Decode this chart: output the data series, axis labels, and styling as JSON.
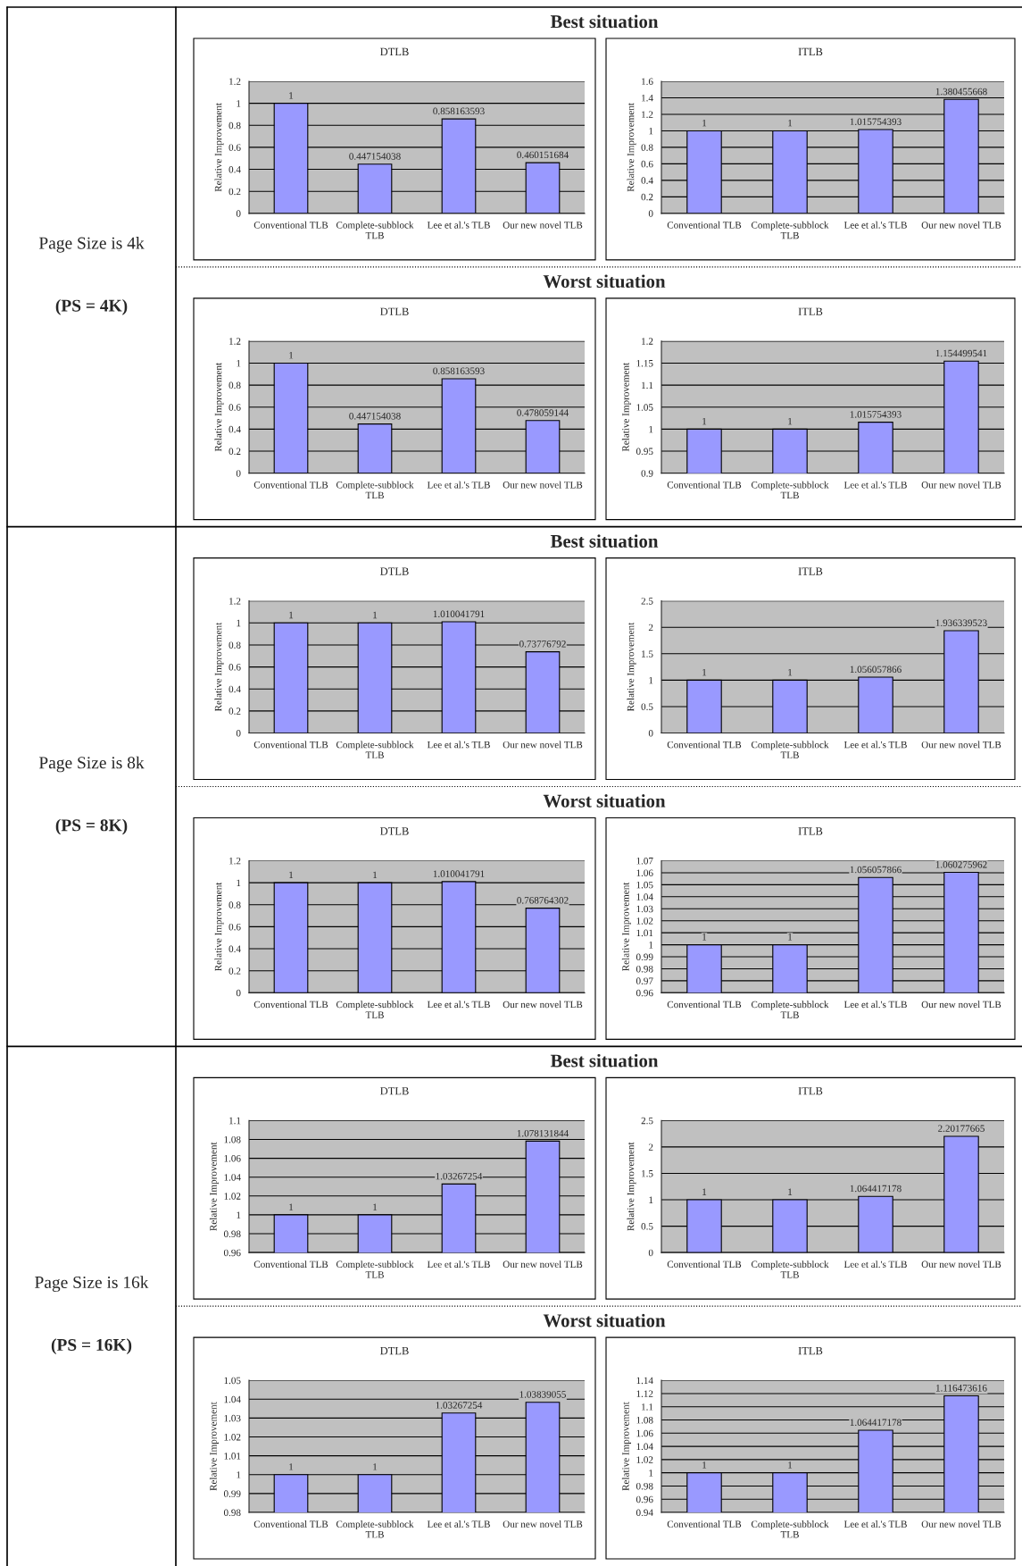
{
  "chart_data": [
    {
      "type": "bar",
      "title": "DTLB",
      "ylabel": "Relative Improvement",
      "categories": [
        "Conventional TLB",
        "Complete-subblock TLB",
        "Lee et al.'s TLB",
        "Our new novel TLB"
      ],
      "values": [
        1,
        0.447154038,
        0.858163593,
        0.460151684
      ],
      "color": "#9999ff",
      "ylim": [
        0,
        1.2
      ],
      "yticks": [
        0,
        0.2,
        0.4,
        0.6,
        0.8,
        1,
        1.2
      ],
      "grid": "y",
      "data_labels": true,
      "annotations": [
        "Best situation",
        "Page Size is 4k",
        "(PS = 4K)"
      ]
    },
    {
      "type": "bar",
      "title": "ITLB",
      "ylabel": "Relative Improvement",
      "categories": [
        "Conventional TLB",
        "Complete-subblock TLB",
        "Lee et al.'s TLB",
        "Our new novel TLB"
      ],
      "values": [
        1,
        1,
        1.015754393,
        1.380455668
      ],
      "color": "#9999ff",
      "ylim": [
        0,
        1.6
      ],
      "yticks": [
        0,
        0.2,
        0.4,
        0.6,
        0.8,
        1,
        1.2,
        1.4,
        1.6
      ],
      "grid": "y",
      "data_labels": true
    },
    {
      "type": "bar",
      "title": "DTLB",
      "ylabel": "Relative Improvement",
      "categories": [
        "Conventional TLB",
        "Complete-subblock TLB",
        "Lee et al.'s TLB",
        "Our new novel TLB"
      ],
      "values": [
        1,
        0.447154038,
        0.858163593,
        0.478059144
      ],
      "color": "#9999ff",
      "ylim": [
        0,
        1.2
      ],
      "yticks": [
        0,
        0.2,
        0.4,
        0.6,
        0.8,
        1,
        1.2
      ],
      "grid": "y",
      "data_labels": true,
      "annotations": [
        "Worst situation"
      ]
    },
    {
      "type": "bar",
      "title": "ITLB",
      "ylabel": "Relative Improvement",
      "categories": [
        "Conventional TLB",
        "Complete-subblock TLB",
        "Lee et al.'s TLB",
        "Our new novel TLB"
      ],
      "values": [
        1,
        1,
        1.015754393,
        1.154499541
      ],
      "color": "#9999ff",
      "ylim": [
        0.9,
        1.2
      ],
      "yticks": [
        0.9,
        0.95,
        1,
        1.05,
        1.1,
        1.15,
        1.2
      ],
      "grid": "y",
      "data_labels": true
    },
    {
      "type": "bar",
      "title": "DTLB",
      "ylabel": "Relative Improvement",
      "categories": [
        "Conventional TLB",
        "Complete-subblock TLB",
        "Lee et al.'s TLB",
        "Our new novel TLB"
      ],
      "values": [
        1,
        1,
        1.010041791,
        0.73776792
      ],
      "color": "#9999ff",
      "ylim": [
        0,
        1.2
      ],
      "yticks": [
        0,
        0.2,
        0.4,
        0.6,
        0.8,
        1,
        1.2
      ],
      "grid": "y",
      "data_labels": true,
      "annotations": [
        "Best situation",
        "Page Size is 8k",
        "(PS = 8K)"
      ]
    },
    {
      "type": "bar",
      "title": "ITLB",
      "ylabel": "Relative Improvement",
      "categories": [
        "Conventional TLB",
        "Complete-subblock TLB",
        "Lee et al.'s TLB",
        "Our new novel TLB"
      ],
      "values": [
        1,
        1,
        1.056057866,
        1.936339523
      ],
      "color": "#9999ff",
      "ylim": [
        0,
        2.5
      ],
      "yticks": [
        0,
        0.5,
        1,
        1.5,
        2,
        2.5
      ],
      "grid": "y",
      "data_labels": true
    },
    {
      "type": "bar",
      "title": "DTLB",
      "ylabel": "Relative Improvement",
      "categories": [
        "Conventional TLB",
        "Complete-subblock TLB",
        "Lee et al.'s TLB",
        "Our new novel TLB"
      ],
      "values": [
        1,
        1,
        1.010041791,
        0.768764302
      ],
      "color": "#9999ff",
      "ylim": [
        0,
        1.2
      ],
      "yticks": [
        0,
        0.2,
        0.4,
        0.6,
        0.8,
        1,
        1.2
      ],
      "grid": "y",
      "data_labels": true,
      "annotations": [
        "Worst situation"
      ]
    },
    {
      "type": "bar",
      "title": "ITLB",
      "ylabel": "Relative Improvement",
      "categories": [
        "Conventional TLB",
        "Complete-subblock TLB",
        "Lee et al.'s TLB",
        "Our new novel TLB"
      ],
      "values": [
        1,
        1,
        1.056057866,
        1.060275962
      ],
      "color": "#9999ff",
      "ylim": [
        0.96,
        1.07
      ],
      "yticks": [
        0.96,
        0.97,
        0.98,
        0.99,
        1,
        1.01,
        1.02,
        1.03,
        1.04,
        1.05,
        1.06,
        1.07
      ],
      "grid": "y",
      "data_labels": true
    },
    {
      "type": "bar",
      "title": "DTLB",
      "ylabel": "Relative Improvement",
      "categories": [
        "Conventional TLB",
        "Complete-subblock TLB",
        "Lee et al.'s TLB",
        "Our new novel TLB"
      ],
      "values": [
        1,
        1,
        1.03267254,
        1.078131844
      ],
      "color": "#9999ff",
      "ylim": [
        0.96,
        1.1
      ],
      "yticks": [
        0.96,
        0.98,
        1,
        1.02,
        1.04,
        1.06,
        1.08,
        1.1
      ],
      "grid": "y",
      "data_labels": true,
      "annotations": [
        "Best situation",
        "Page Size is 16k",
        "(PS = 16K)"
      ]
    },
    {
      "type": "bar",
      "title": "ITLB",
      "ylabel": "Relative Improvement",
      "categories": [
        "Conventional TLB",
        "Complete-subblock TLB",
        "Lee et al.'s TLB",
        "Our new novel TLB"
      ],
      "values": [
        1,
        1,
        1.064417178,
        2.20177665
      ],
      "color": "#9999ff",
      "ylim": [
        0,
        2.5
      ],
      "yticks": [
        0,
        0.5,
        1,
        1.5,
        2,
        2.5
      ],
      "grid": "y",
      "data_labels": true
    },
    {
      "type": "bar",
      "title": "DTLB",
      "ylabel": "Relative Improvement",
      "categories": [
        "Conventional TLB",
        "Complete-subblock TLB",
        "Lee et al.'s TLB",
        "Our new novel TLB"
      ],
      "values": [
        1,
        1,
        1.03267254,
        1.03839055
      ],
      "color": "#9999ff",
      "ylim": [
        0.98,
        1.05
      ],
      "yticks": [
        0.98,
        0.99,
        1,
        1.01,
        1.02,
        1.03,
        1.04,
        1.05
      ],
      "grid": "y",
      "data_labels": true,
      "annotations": [
        "Worst situation"
      ]
    },
    {
      "type": "bar",
      "title": "ITLB",
      "ylabel": "Relative Improvement",
      "categories": [
        "Conventional TLB",
        "Complete-subblock TLB",
        "Lee et al.'s TLB",
        "Our new novel TLB"
      ],
      "values": [
        1,
        1,
        1.064417178,
        1.116473616
      ],
      "color": "#9999ff",
      "ylim": [
        0.94,
        1.14
      ],
      "yticks": [
        0.94,
        0.96,
        0.98,
        1,
        1.02,
        1.04,
        1.06,
        1.08,
        1.1,
        1.12,
        1.14
      ],
      "grid": "y",
      "data_labels": true
    }
  ]
}
